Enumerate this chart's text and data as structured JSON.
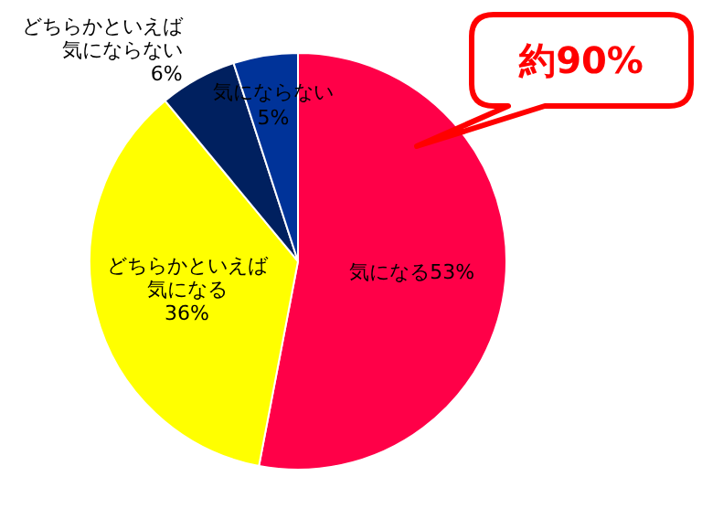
{
  "chart_data": {
    "type": "pie",
    "categories": [
      "気になる",
      "どちらかといえば気になる",
      "どちらかといえば気にならない",
      "気にならない"
    ],
    "values": [
      53,
      36,
      6,
      5
    ],
    "value_labels": [
      "53%",
      "36%",
      "6%",
      "5%"
    ],
    "colors": [
      "#ff0048",
      "#ffff00",
      "#00205f",
      "#003399"
    ],
    "annotations": [
      "約90%"
    ]
  }
}
